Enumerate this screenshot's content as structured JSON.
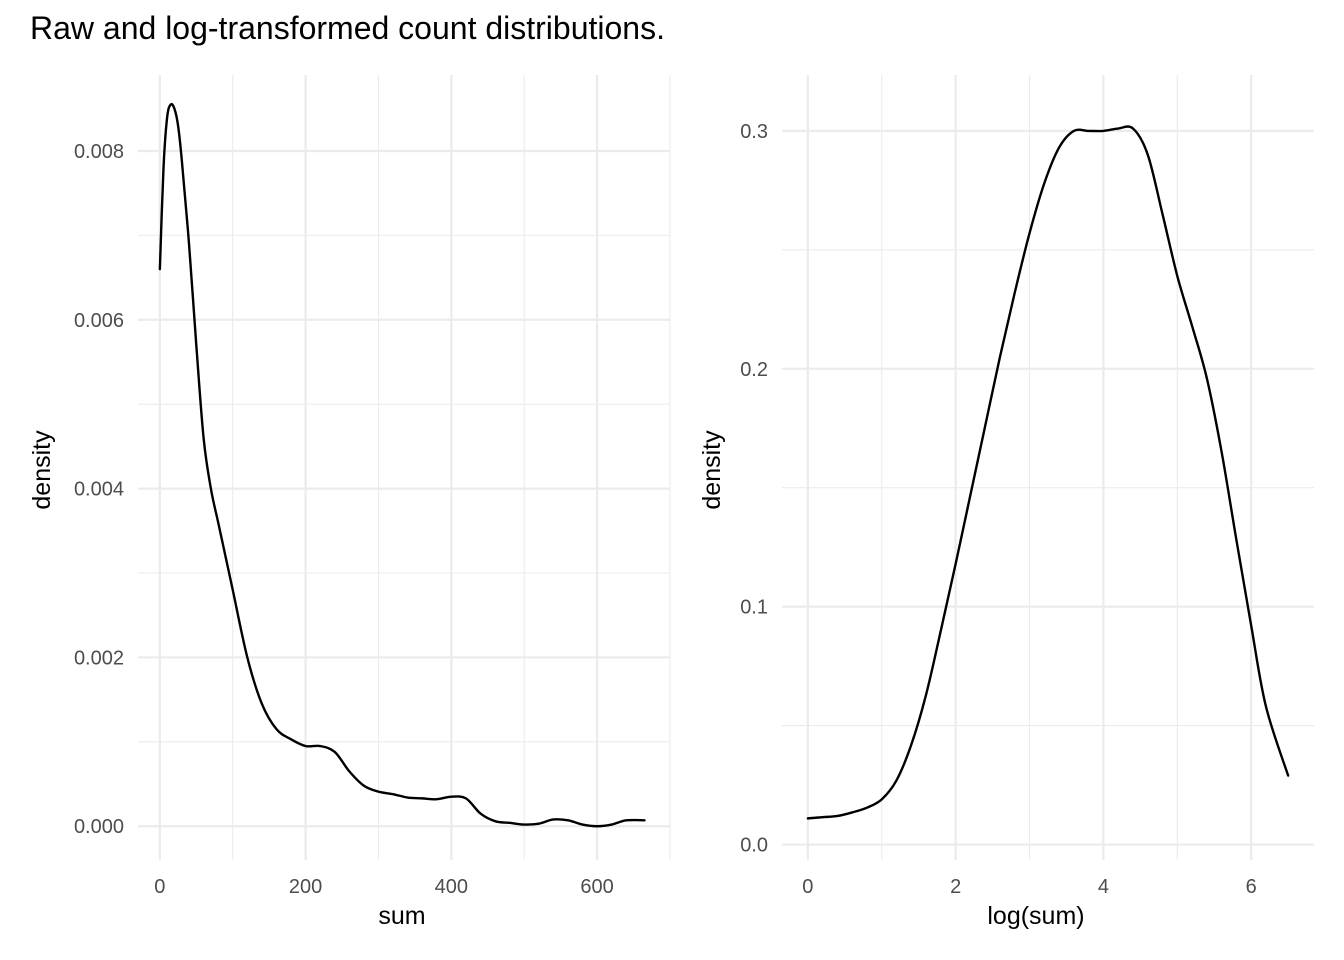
{
  "title": "Raw and log-transformed count distributions.",
  "chart_data": [
    {
      "type": "line",
      "xlabel": "sum",
      "ylabel": "density",
      "xlim": [
        -30,
        700
      ],
      "ylim": [
        -0.0004,
        0.0089
      ],
      "x_ticks": [
        0,
        200,
        400,
        600
      ],
      "x_tick_labels": [
        "0",
        "200",
        "400",
        "600"
      ],
      "y_ticks": [
        0.0,
        0.002,
        0.004,
        0.006,
        0.008
      ],
      "y_tick_labels": [
        "0.000",
        "0.002",
        "0.004",
        "0.006",
        "0.008"
      ],
      "grid": true,
      "series": [
        {
          "x": [
            0,
            5,
            10,
            15,
            20,
            25,
            30,
            40,
            50,
            60,
            70,
            80,
            90,
            100,
            120,
            140,
            160,
            180,
            200,
            220,
            240,
            260,
            280,
            300,
            320,
            340,
            360,
            380,
            400,
            420,
            440,
            460,
            480,
            500,
            520,
            540,
            560,
            580,
            600,
            620,
            640,
            665
          ],
          "y": [
            0.0066,
            0.0078,
            0.0084,
            0.00855,
            0.0085,
            0.0083,
            0.0079,
            0.0069,
            0.0057,
            0.0046,
            0.004,
            0.0036,
            0.0032,
            0.0028,
            0.002,
            0.00145,
            0.00115,
            0.00103,
            0.00095,
            0.00095,
            0.00088,
            0.00065,
            0.00048,
            0.00041,
            0.00038,
            0.00034,
            0.00033,
            0.00032,
            0.00035,
            0.00033,
            0.00015,
            6e-05,
            4e-05,
            2e-05,
            3e-05,
            8e-05,
            7e-05,
            2e-05,
            0.0,
            2e-05,
            7e-05,
            7e-05
          ]
        }
      ]
    },
    {
      "type": "line",
      "xlabel": "log(sum)",
      "ylabel": "density",
      "xlim": [
        -0.35,
        6.85
      ],
      "ylim": [
        -0.0065,
        0.3235
      ],
      "x_ticks": [
        0,
        2,
        4,
        6
      ],
      "x_tick_labels": [
        "0",
        "2",
        "4",
        "6"
      ],
      "y_ticks": [
        0.0,
        0.1,
        0.2,
        0.3
      ],
      "y_tick_labels": [
        "0.0",
        "0.1",
        "0.2",
        "0.3"
      ],
      "grid": true,
      "series": [
        {
          "x": [
            0.0,
            0.2,
            0.4,
            0.6,
            0.8,
            1.0,
            1.2,
            1.4,
            1.6,
            1.8,
            2.0,
            2.2,
            2.4,
            2.6,
            2.8,
            3.0,
            3.2,
            3.4,
            3.6,
            3.8,
            4.0,
            4.2,
            4.4,
            4.6,
            4.8,
            5.0,
            5.2,
            5.4,
            5.6,
            5.8,
            6.0,
            6.2,
            6.5
          ],
          "y": [
            0.011,
            0.0115,
            0.012,
            0.0135,
            0.0155,
            0.019,
            0.027,
            0.042,
            0.063,
            0.09,
            0.118,
            0.147,
            0.176,
            0.205,
            0.232,
            0.257,
            0.278,
            0.293,
            0.3,
            0.3,
            0.3,
            0.301,
            0.301,
            0.29,
            0.265,
            0.239,
            0.218,
            0.196,
            0.165,
            0.128,
            0.092,
            0.058,
            0.029
          ]
        }
      ]
    }
  ]
}
